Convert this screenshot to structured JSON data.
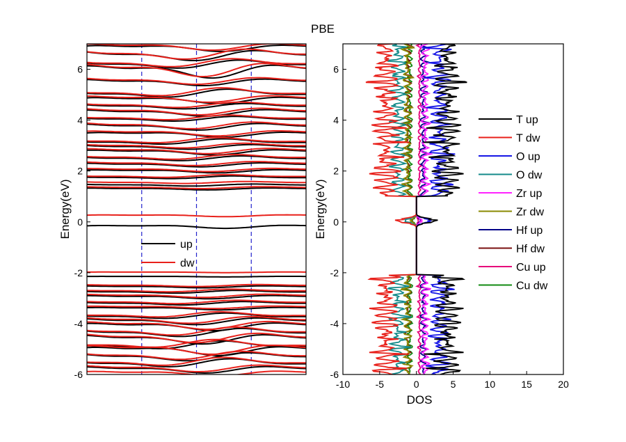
{
  "title": "PBE",
  "chart_data": [
    {
      "type": "line",
      "name": "band-structure",
      "ylabel": "Energy(eV)",
      "xlabel": "",
      "ylim": [
        -6,
        7
      ],
      "yticks": [
        -6,
        -4,
        -2,
        0,
        2,
        4,
        6
      ],
      "kpath": {
        "xlim": [
          0,
          4
        ],
        "dividers": [
          1,
          2,
          3
        ]
      },
      "legend": {
        "placement": "center-left",
        "entries": [
          "up",
          "dw"
        ]
      },
      "colors": {
        "up": "#000000",
        "dw": "#e8201a",
        "divider": "#2222cc"
      },
      "series": [
        {
          "name": "up",
          "bands": [
            {
              "e0": 6.85,
              "amp": 0.1,
              "phase": 0.2
            },
            {
              "e0": 6.55,
              "amp": 0.15,
              "phase": 1.4
            },
            {
              "e0": 6.2,
              "amp": 0.12,
              "phase": 2.1
            },
            {
              "e0": 5.95,
              "amp": 0.2,
              "phase": 0.6
            },
            {
              "e0": 5.5,
              "amp": 0.1,
              "phase": 1.0
            },
            {
              "e0": 5.05,
              "amp": 0.12,
              "phase": 2.6
            },
            {
              "e0": 4.8,
              "amp": 0.1,
              "phase": 0.3
            },
            {
              "e0": 4.55,
              "amp": 0.08,
              "phase": 1.8
            },
            {
              "e0": 4.3,
              "amp": 0.1,
              "phase": 0.9
            },
            {
              "e0": 4.05,
              "amp": 0.07,
              "phase": 2.3
            },
            {
              "e0": 3.75,
              "amp": 0.1,
              "phase": 1.2
            },
            {
              "e0": 3.45,
              "amp": 0.08,
              "phase": 0.1
            },
            {
              "e0": 3.15,
              "amp": 0.08,
              "phase": 2.8
            },
            {
              "e0": 2.95,
              "amp": 0.07,
              "phase": 1.6
            },
            {
              "e0": 2.75,
              "amp": 0.08,
              "phase": 0.5
            },
            {
              "e0": 2.5,
              "amp": 0.07,
              "phase": 2.0
            },
            {
              "e0": 2.25,
              "amp": 0.06,
              "phase": 1.1
            },
            {
              "e0": 2.0,
              "amp": 0.05,
              "phase": 0.4
            },
            {
              "e0": 1.75,
              "amp": 0.04,
              "phase": 2.4
            },
            {
              "e0": 1.45,
              "amp": 0.03,
              "phase": 1.5
            },
            {
              "e0": 1.3,
              "amp": 0.03,
              "phase": 0.8
            },
            {
              "e0": -0.18,
              "amp": 0.05,
              "phase": 0.0
            },
            {
              "e0": -2.15,
              "amp": 0.01,
              "phase": 0.0
            },
            {
              "e0": -2.55,
              "amp": 0.03,
              "phase": 1.0
            },
            {
              "e0": -2.75,
              "amp": 0.04,
              "phase": 2.2
            },
            {
              "e0": -2.95,
              "amp": 0.05,
              "phase": 0.7
            },
            {
              "e0": -3.2,
              "amp": 0.05,
              "phase": 1.9
            },
            {
              "e0": -3.4,
              "amp": 0.04,
              "phase": 0.2
            },
            {
              "e0": -3.7,
              "amp": 0.08,
              "phase": 2.7
            },
            {
              "e0": -3.9,
              "amp": 0.1,
              "phase": 1.3
            },
            {
              "e0": -4.1,
              "amp": 0.12,
              "phase": 0.5
            },
            {
              "e0": -4.35,
              "amp": 0.12,
              "phase": 2.0
            },
            {
              "e0": -4.6,
              "amp": 0.14,
              "phase": 1.0
            },
            {
              "e0": -4.85,
              "amp": 0.12,
              "phase": 2.9
            },
            {
              "e0": -5.05,
              "amp": 0.14,
              "phase": 0.3
            },
            {
              "e0": -5.3,
              "amp": 0.12,
              "phase": 1.7
            },
            {
              "e0": -5.55,
              "amp": 0.12,
              "phase": 2.5
            },
            {
              "e0": -5.8,
              "amp": 0.1,
              "phase": 0.9
            }
          ]
        },
        {
          "name": "dw",
          "bands": [
            {
              "e0": 6.9,
              "amp": 0.1,
              "phase": 0.6
            },
            {
              "e0": 6.6,
              "amp": 0.15,
              "phase": 1.8
            },
            {
              "e0": 6.25,
              "amp": 0.12,
              "phase": 2.4
            },
            {
              "e0": 6.0,
              "amp": 0.2,
              "phase": 1.0
            },
            {
              "e0": 5.55,
              "amp": 0.1,
              "phase": 1.3
            },
            {
              "e0": 5.1,
              "amp": 0.12,
              "phase": 2.9
            },
            {
              "e0": 4.85,
              "amp": 0.1,
              "phase": 0.7
            },
            {
              "e0": 4.6,
              "amp": 0.08,
              "phase": 2.1
            },
            {
              "e0": 4.35,
              "amp": 0.1,
              "phase": 1.2
            },
            {
              "e0": 4.1,
              "amp": 0.07,
              "phase": 2.6
            },
            {
              "e0": 3.8,
              "amp": 0.1,
              "phase": 1.5
            },
            {
              "e0": 3.5,
              "amp": 0.08,
              "phase": 0.4
            },
            {
              "e0": 3.2,
              "amp": 0.08,
              "phase": 3.1
            },
            {
              "e0": 3.0,
              "amp": 0.07,
              "phase": 1.9
            },
            {
              "e0": 2.8,
              "amp": 0.08,
              "phase": 0.8
            },
            {
              "e0": 2.55,
              "amp": 0.07,
              "phase": 2.3
            },
            {
              "e0": 2.3,
              "amp": 0.06,
              "phase": 1.4
            },
            {
              "e0": 2.05,
              "amp": 0.05,
              "phase": 0.7
            },
            {
              "e0": 1.8,
              "amp": 0.04,
              "phase": 2.7
            },
            {
              "e0": 1.55,
              "amp": 0.03,
              "phase": 1.8
            },
            {
              "e0": 1.35,
              "amp": 0.03,
              "phase": 1.1
            },
            {
              "e0": 0.25,
              "amp": 0.03,
              "phase": 0.0
            },
            {
              "e0": -1.98,
              "amp": 0.01,
              "phase": 0.0
            },
            {
              "e0": -2.5,
              "amp": 0.03,
              "phase": 1.3
            },
            {
              "e0": -2.7,
              "amp": 0.04,
              "phase": 2.5
            },
            {
              "e0": -2.9,
              "amp": 0.05,
              "phase": 1.0
            },
            {
              "e0": -3.15,
              "amp": 0.05,
              "phase": 2.2
            },
            {
              "e0": -3.35,
              "amp": 0.04,
              "phase": 0.5
            },
            {
              "e0": -3.65,
              "amp": 0.08,
              "phase": 3.0
            },
            {
              "e0": -3.85,
              "amp": 0.1,
              "phase": 1.6
            },
            {
              "e0": -4.05,
              "amp": 0.12,
              "phase": 0.8
            },
            {
              "e0": -4.3,
              "amp": 0.12,
              "phase": 2.3
            },
            {
              "e0": -4.55,
              "amp": 0.14,
              "phase": 1.3
            },
            {
              "e0": -4.8,
              "amp": 0.12,
              "phase": 3.2
            },
            {
              "e0": -5.0,
              "amp": 0.14,
              "phase": 0.6
            },
            {
              "e0": -5.25,
              "amp": 0.12,
              "phase": 2.0
            },
            {
              "e0": -5.5,
              "amp": 0.12,
              "phase": 2.8
            },
            {
              "e0": -5.75,
              "amp": 0.1,
              "phase": 1.2
            },
            {
              "e0": -5.95,
              "amp": 0.08,
              "phase": 0.4
            }
          ]
        }
      ]
    },
    {
      "type": "line",
      "name": "projected-dos",
      "ylabel": "Energy(eV)",
      "xlabel": "DOS",
      "xlim": [
        -10,
        20
      ],
      "ylim": [
        -6,
        7
      ],
      "xticks": [
        -10,
        -5,
        0,
        5,
        10,
        15,
        20
      ],
      "yticks": [
        -6,
        -4,
        -2,
        0,
        2,
        4,
        6
      ],
      "legend": {
        "placement": "right"
      },
      "gap": [
        -2.1,
        1.0
      ],
      "series": [
        {
          "name": "T up",
          "sign": 1,
          "scale": 1.0,
          "color": "#000000"
        },
        {
          "name": "T dw",
          "sign": -1,
          "scale": 1.0,
          "color": "#e8201a"
        },
        {
          "name": "O up",
          "sign": 1,
          "scale": 0.75,
          "color": "#1515e6"
        },
        {
          "name": "O dw",
          "sign": -1,
          "scale": 0.6,
          "color": "#138a8a"
        },
        {
          "name": "Zr up",
          "sign": 1,
          "scale": 0.28,
          "color": "#ff22ff"
        },
        {
          "name": "Zr dw",
          "sign": -1,
          "scale": 0.3,
          "color": "#8a8a00"
        },
        {
          "name": "Hf up",
          "sign": 1,
          "scale": 0.22,
          "color": "#000088"
        },
        {
          "name": "Hf dw",
          "sign": -1,
          "scale": 0.28,
          "color": "#7a0f0f"
        },
        {
          "name": "Cu up",
          "sign": 1,
          "scale": 0.1,
          "color": "#e6007a"
        },
        {
          "name": "Cu dw",
          "sign": -1,
          "scale": 0.22,
          "color": "#118a11"
        }
      ]
    }
  ]
}
